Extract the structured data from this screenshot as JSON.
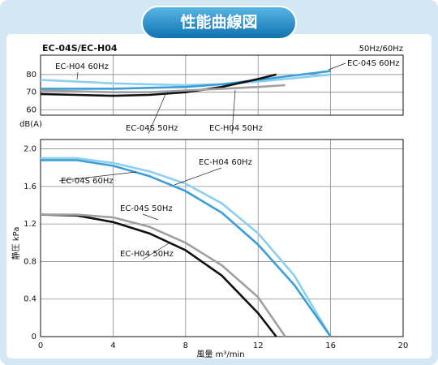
{
  "header": {
    "title": "性能曲線図"
  },
  "chart_data": [
    {
      "type": "line",
      "title": "EC-04S/EC-H04",
      "subtitle": "50Hz/60Hz",
      "y_label": "dB(A)",
      "xlim": [
        0,
        20
      ],
      "xticks": [
        0,
        4,
        8,
        12,
        16,
        20
      ],
      "ylim": [
        57,
        91
      ],
      "yticks": [
        60,
        70,
        80
      ],
      "grid": true,
      "series": [
        {
          "name": "EC-H04 60Hz",
          "color": "#8ccfee",
          "x": [
            0,
            2,
            4,
            6,
            8,
            10,
            12,
            14,
            16
          ],
          "values": [
            77,
            76,
            75,
            74.5,
            74,
            74.5,
            76,
            78,
            80
          ]
        },
        {
          "name": "EC-04S 60Hz",
          "color": "#3a9fd8",
          "x": [
            0,
            2,
            4,
            6,
            8,
            10,
            12,
            14,
            16
          ],
          "values": [
            72,
            72,
            72,
            72.5,
            73,
            74.5,
            77,
            79.5,
            82
          ]
        },
        {
          "name": "EC-04S 50Hz",
          "color": "#111111",
          "x": [
            0,
            2,
            4,
            6,
            8,
            10,
            12,
            13
          ],
          "values": [
            69,
            68.5,
            68,
            68.5,
            70,
            73,
            77.5,
            80
          ]
        },
        {
          "name": "EC-H04 50Hz",
          "color": "#a0a0a0",
          "x": [
            0,
            2,
            4,
            6,
            8,
            10,
            12,
            13.5
          ],
          "values": [
            71,
            70.5,
            70,
            70,
            71,
            72,
            73,
            74
          ]
        }
      ]
    },
    {
      "type": "line",
      "x_label": "風量 m³/min",
      "y_label": "静圧 kPa",
      "xlim": [
        0,
        20
      ],
      "xticks": [
        0,
        4,
        8,
        12,
        16,
        20
      ],
      "ylim": [
        0,
        2.1
      ],
      "yticks": [
        0,
        0.4,
        0.8,
        1.2,
        1.6,
        {
          "value": 2,
          "label": "2.0"
        }
      ],
      "grid": true,
      "series": [
        {
          "name": "EC-H04 60Hz",
          "color": "#8ccfee",
          "x": [
            0,
            2,
            4,
            6,
            8,
            10,
            12,
            14,
            16
          ],
          "values": [
            1.9,
            1.9,
            1.85,
            1.76,
            1.63,
            1.42,
            1.1,
            0.65,
            0
          ]
        },
        {
          "name": "EC-04S 60Hz",
          "color": "#3a9fd8",
          "x": [
            0,
            2,
            4,
            6,
            8,
            10,
            12,
            14,
            16
          ],
          "values": [
            1.88,
            1.88,
            1.82,
            1.71,
            1.55,
            1.32,
            0.98,
            0.55,
            0
          ]
        },
        {
          "name": "EC-04S 50Hz",
          "color": "#111111",
          "x": [
            0,
            2,
            4,
            6,
            8,
            10,
            12,
            13
          ],
          "values": [
            1.3,
            1.29,
            1.22,
            1.1,
            0.92,
            0.65,
            0.25,
            0
          ]
        },
        {
          "name": "EC-H04 50Hz",
          "color": "#a0a0a0",
          "x": [
            0,
            2,
            4,
            6,
            8,
            10,
            12,
            13.5
          ],
          "values": [
            1.3,
            1.3,
            1.27,
            1.17,
            1.0,
            0.76,
            0.42,
            0
          ]
        }
      ]
    }
  ]
}
